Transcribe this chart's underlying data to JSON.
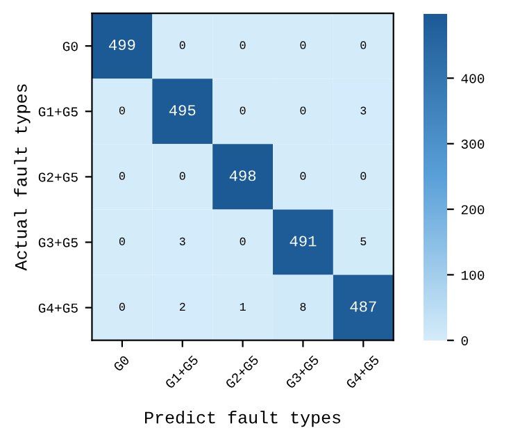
{
  "chart_data": {
    "type": "heatmap",
    "xlabel": "Predict fault types",
    "ylabel": "Actual fault types",
    "categories": [
      "G0",
      "G1+G5",
      "G2+G5",
      "G3+G5",
      "G4+G5"
    ],
    "y_categories": [
      "G0",
      "G1+G5",
      "G2+G5",
      "G3+G5",
      "G4+G5"
    ],
    "cells": [
      [
        499,
        0,
        0,
        0,
        0
      ],
      [
        0,
        495,
        0,
        0,
        3
      ],
      [
        0,
        0,
        498,
        0,
        0
      ],
      [
        0,
        3,
        0,
        491,
        5
      ],
      [
        0,
        2,
        1,
        8,
        487
      ]
    ],
    "clim": [
      0,
      499
    ],
    "cticks": [
      0,
      100,
      200,
      300,
      400
    ],
    "data_labels": true
  }
}
